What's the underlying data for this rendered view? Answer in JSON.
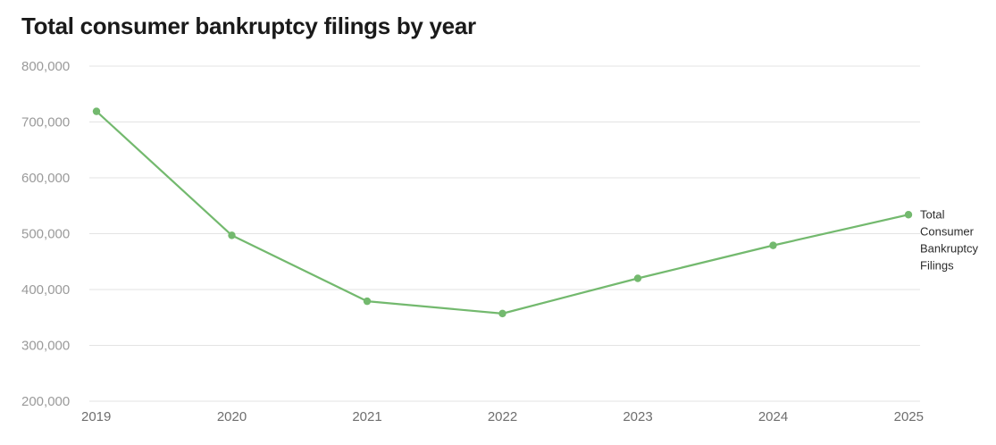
{
  "chart_data": {
    "type": "line",
    "title": "Total consumer bankruptcy filings by year",
    "xlabel": "",
    "ylabel": "",
    "x": [
      "2019",
      "2020",
      "2021",
      "2022",
      "2023",
      "2024",
      "2025"
    ],
    "y_ticks": [
      "200,000",
      "300,000",
      "400,000",
      "500,000",
      "600,000",
      "700,000",
      "800,000"
    ],
    "ylim": [
      200000,
      800000
    ],
    "grid": true,
    "legend": "inline-right",
    "series": [
      {
        "name": "Total Consumer Bankruptcy Filings",
        "label_lines": [
          "Total",
          "Consumer",
          "Bankruptcy",
          "Filings"
        ],
        "color": "#73b96e",
        "values": [
          719000,
          497000,
          379000,
          357000,
          420000,
          479000,
          534000
        ]
      }
    ]
  }
}
